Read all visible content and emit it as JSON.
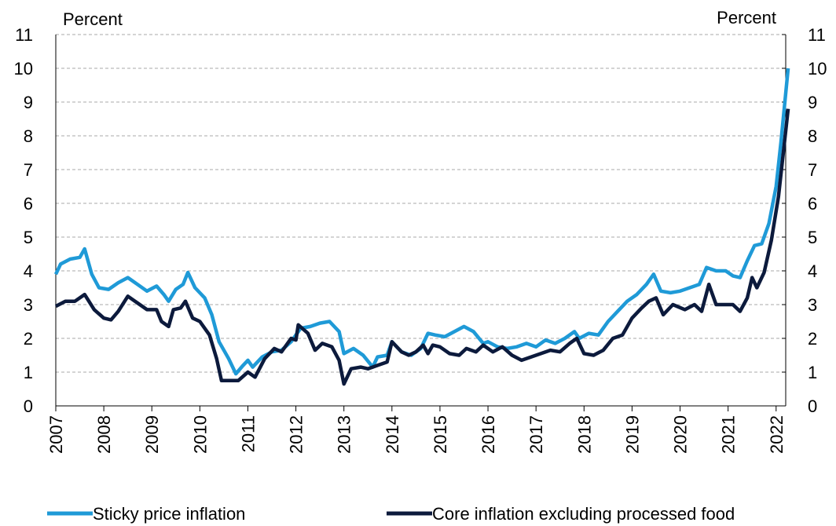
{
  "chart_data": {
    "type": "line",
    "y_label": "Percent",
    "y2_label": "Percent",
    "xlim": [
      2007,
      2022.2
    ],
    "xticks": [
      2007,
      2008,
      2009,
      2010,
      2011,
      2012,
      2013,
      2014,
      2015,
      2016,
      2017,
      2018,
      2019,
      2020,
      2021,
      2022
    ],
    "ylim": [
      0,
      11
    ],
    "yticks": [
      0,
      1,
      2,
      3,
      4,
      5,
      6,
      7,
      8,
      9,
      10,
      11
    ],
    "y2lim": [
      0,
      11
    ],
    "y2ticks": [
      0,
      1,
      2,
      3,
      4,
      5,
      6,
      7,
      8,
      9,
      10,
      11
    ],
    "grid": true,
    "legend": "bottom",
    "series": [
      {
        "name": "Sticky price inflation",
        "color": "#1f9ad7",
        "x": [
          2007.0,
          2007.1,
          2007.3,
          2007.5,
          2007.6,
          2007.75,
          2007.9,
          2008.1,
          2008.3,
          2008.5,
          2008.7,
          2008.9,
          2009.1,
          2009.25,
          2009.35,
          2009.5,
          2009.65,
          2009.75,
          2009.9,
          2010.1,
          2010.25,
          2010.4,
          2010.6,
          2010.75,
          2010.9,
          2011.0,
          2011.1,
          2011.3,
          2011.5,
          2011.7,
          2011.9,
          2012.1,
          2012.3,
          2012.5,
          2012.7,
          2012.9,
          2013.0,
          2013.2,
          2013.4,
          2013.6,
          2013.7,
          2013.9,
          2014.0,
          2014.2,
          2014.4,
          2014.6,
          2014.75,
          2014.9,
          2015.1,
          2015.3,
          2015.5,
          2015.7,
          2015.9,
          2016.0,
          2016.2,
          2016.4,
          2016.6,
          2016.8,
          2017.0,
          2017.2,
          2017.4,
          2017.6,
          2017.8,
          2017.9,
          2018.1,
          2018.3,
          2018.5,
          2018.7,
          2018.9,
          2019.1,
          2019.3,
          2019.45,
          2019.6,
          2019.8,
          2020.0,
          2020.2,
          2020.4,
          2020.55,
          2020.75,
          2020.95,
          2021.1,
          2021.25,
          2021.4,
          2021.55,
          2021.7,
          2021.85,
          2022.0,
          2022.1,
          2022.25
        ],
        "values": [
          3.9,
          4.2,
          4.35,
          4.4,
          4.65,
          3.9,
          3.5,
          3.45,
          3.65,
          3.8,
          3.6,
          3.4,
          3.55,
          3.3,
          3.1,
          3.45,
          3.6,
          3.95,
          3.5,
          3.2,
          2.7,
          1.9,
          1.4,
          0.95,
          1.2,
          1.35,
          1.15,
          1.45,
          1.6,
          1.65,
          1.9,
          2.3,
          2.35,
          2.45,
          2.5,
          2.2,
          1.55,
          1.7,
          1.5,
          1.15,
          1.45,
          1.5,
          1.9,
          1.6,
          1.5,
          1.7,
          2.15,
          2.1,
          2.05,
          2.2,
          2.35,
          2.2,
          1.85,
          1.9,
          1.75,
          1.7,
          1.75,
          1.85,
          1.75,
          1.95,
          1.85,
          2.0,
          2.2,
          2.0,
          2.15,
          2.1,
          2.5,
          2.8,
          3.1,
          3.3,
          3.6,
          3.9,
          3.4,
          3.35,
          3.4,
          3.5,
          3.6,
          4.1,
          4.0,
          4.0,
          3.85,
          3.8,
          4.3,
          4.75,
          4.8,
          5.4,
          6.5,
          7.8,
          10.0
        ]
      },
      {
        "name": "Core inflation excluding processed food",
        "color": "#0c1a3c",
        "x": [
          2007.0,
          2007.2,
          2007.4,
          2007.6,
          2007.8,
          2008.0,
          2008.15,
          2008.3,
          2008.5,
          2008.7,
          2008.9,
          2009.1,
          2009.2,
          2009.35,
          2009.45,
          2009.6,
          2009.7,
          2009.85,
          2010.0,
          2010.2,
          2010.35,
          2010.45,
          2010.6,
          2010.8,
          2011.0,
          2011.15,
          2011.35,
          2011.55,
          2011.7,
          2011.9,
          2012.0,
          2012.05,
          2012.25,
          2012.4,
          2012.55,
          2012.75,
          2012.9,
          2013.0,
          2013.15,
          2013.35,
          2013.5,
          2013.7,
          2013.9,
          2014.0,
          2014.2,
          2014.35,
          2014.5,
          2014.65,
          2014.75,
          2014.85,
          2015.0,
          2015.2,
          2015.4,
          2015.55,
          2015.75,
          2015.9,
          2016.1,
          2016.3,
          2016.5,
          2016.7,
          2016.9,
          2017.1,
          2017.3,
          2017.5,
          2017.7,
          2017.85,
          2018.0,
          2018.2,
          2018.4,
          2018.6,
          2018.8,
          2019.0,
          2019.2,
          2019.35,
          2019.5,
          2019.65,
          2019.85,
          2020.1,
          2020.3,
          2020.45,
          2020.6,
          2020.75,
          2020.95,
          2021.1,
          2021.25,
          2021.4,
          2021.5,
          2021.6,
          2021.75,
          2021.9,
          2022.05,
          2022.25
        ],
        "values": [
          2.95,
          3.1,
          3.1,
          3.3,
          2.85,
          2.6,
          2.55,
          2.8,
          3.25,
          3.05,
          2.85,
          2.85,
          2.5,
          2.35,
          2.85,
          2.9,
          3.1,
          2.6,
          2.5,
          2.1,
          1.4,
          0.75,
          0.75,
          0.75,
          1.0,
          0.85,
          1.4,
          1.7,
          1.6,
          2.0,
          1.95,
          2.4,
          2.15,
          1.65,
          1.85,
          1.75,
          1.35,
          0.65,
          1.1,
          1.15,
          1.1,
          1.2,
          1.3,
          1.9,
          1.6,
          1.5,
          1.6,
          1.8,
          1.55,
          1.8,
          1.75,
          1.55,
          1.5,
          1.7,
          1.6,
          1.8,
          1.6,
          1.75,
          1.5,
          1.35,
          1.45,
          1.55,
          1.65,
          1.6,
          1.85,
          2.0,
          1.55,
          1.5,
          1.65,
          2.0,
          2.1,
          2.6,
          2.9,
          3.1,
          3.2,
          2.7,
          3.0,
          2.85,
          3.0,
          2.8,
          3.6,
          3.0,
          3.0,
          3.0,
          2.8,
          3.2,
          3.8,
          3.5,
          3.95,
          4.9,
          6.2,
          8.8
        ]
      }
    ]
  }
}
